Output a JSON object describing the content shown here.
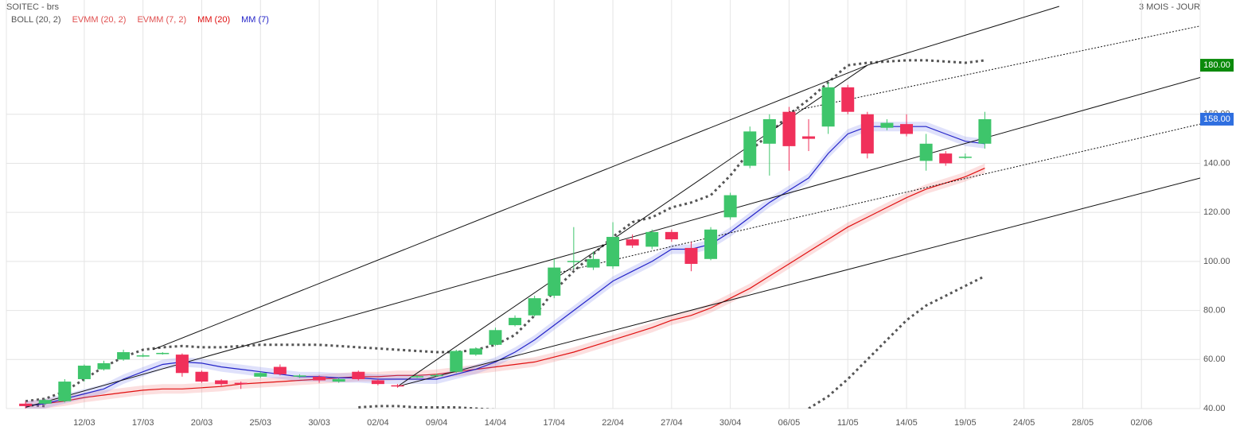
{
  "chart_data": {
    "type": "candlestick",
    "title": "SOITEC - brs",
    "period": "3 MOIS - JOUR",
    "up_color": "#3ec56b",
    "down_color": "#f0305a",
    "open": [
      42,
      42,
      43,
      52,
      56,
      60,
      61.3,
      62.3,
      62,
      55,
      51.5,
      50.5,
      53,
      57,
      53,
      53,
      51,
      55,
      51.5,
      49.5,
      52.8,
      53.3,
      55,
      62,
      66,
      74,
      78,
      86,
      99.8,
      97.5,
      98,
      109,
      106,
      112,
      105.5,
      101,
      118,
      139,
      148,
      161,
      151,
      155,
      171,
      160,
      154.5,
      156,
      141,
      144,
      142.3,
      148
    ],
    "high": [
      43,
      44,
      52,
      58,
      59.5,
      64,
      62.5,
      63,
      62.5,
      55.5,
      52,
      51,
      55,
      58,
      54,
      53.5,
      52.5,
      55.5,
      52,
      50,
      53.8,
      54.2,
      64,
      65,
      73,
      78,
      86,
      101,
      114,
      104,
      116,
      111,
      113,
      113,
      108,
      114,
      128,
      155,
      160,
      163,
      158,
      173,
      172,
      161,
      158,
      160,
      152,
      145,
      144,
      161
    ],
    "low": [
      40,
      41.5,
      42.5,
      51,
      55.5,
      59.5,
      61,
      62,
      53,
      50.5,
      49,
      48,
      52.5,
      53.5,
      52.5,
      50.5,
      50.5,
      51.5,
      49.5,
      48.5,
      52.5,
      53,
      54.5,
      61.5,
      65.5,
      73.5,
      77.5,
      85,
      97,
      96.5,
      97,
      105.5,
      105,
      108,
      96,
      100.5,
      117,
      138,
      135,
      137,
      145,
      152,
      160,
      142,
      153.5,
      151,
      137,
      139,
      141.8,
      146
    ],
    "close": [
      41,
      43.5,
      51,
      57.5,
      58.5,
      63,
      61.7,
      62.7,
      54.5,
      51,
      50,
      50,
      54.5,
      54,
      53.5,
      51.5,
      52,
      52,
      50,
      49,
      53.2,
      53.7,
      63.5,
      64.5,
      72,
      77,
      85,
      97.5,
      100.2,
      101,
      110,
      106.5,
      112,
      109,
      99,
      113,
      127,
      153,
      158,
      147,
      150,
      171,
      161,
      144,
      156.5,
      152,
      148,
      140,
      142.7,
      158
    ],
    "series": [
      {
        "name": "BOLL (20, 2)",
        "color": "#555555",
        "upper": [
          43,
          44,
          47,
          52,
          57,
          61,
          64,
          65,
          65.5,
          65,
          65,
          65.5,
          66,
          66,
          66,
          66,
          65.5,
          65,
          64.5,
          64,
          63.5,
          63,
          63,
          64,
          66,
          70,
          78,
          88,
          96,
          103,
          110,
          116,
          118,
          122,
          124,
          127,
          135,
          145,
          152,
          160,
          166,
          173,
          180,
          181,
          181.5,
          182,
          182,
          181.5,
          181,
          182
        ],
        "lower": [
          41.5,
          41,
          null,
          null,
          null,
          null,
          null,
          null,
          null,
          null,
          null,
          null,
          null,
          null,
          null,
          null,
          null,
          40.5,
          41,
          41,
          40.5,
          40.5,
          40.5,
          40,
          39.5,
          38.5,
          null,
          null,
          null,
          null,
          null,
          null,
          null,
          null,
          null,
          null,
          null,
          null,
          null,
          null,
          40,
          45,
          52,
          60,
          68,
          76,
          82,
          86,
          90,
          94
        ]
      },
      {
        "name": "EVMM (20, 2)",
        "color": "#e05050"
      },
      {
        "name": "EVMM (7, 2)",
        "color": "#e05050"
      },
      {
        "name": "MM (20)",
        "color": "#e01010",
        "band": "rgba(240,110,110,0.22)",
        "values": [
          41,
          42,
          43,
          44.5,
          45.5,
          46.5,
          47.5,
          48,
          48,
          48.5,
          49,
          50,
          50.5,
          51,
          51.5,
          52,
          52.5,
          53,
          53,
          53.5,
          53.5,
          54,
          55,
          56,
          57,
          58,
          59,
          61,
          63,
          65.5,
          68,
          70.5,
          73,
          76,
          78,
          81,
          85,
          89,
          94,
          99,
          104,
          109,
          114,
          118,
          122,
          126,
          129.5,
          132,
          134.5,
          138
        ]
      },
      {
        "name": "MM (7)",
        "color": "#2424c8",
        "band": "rgba(110,120,235,0.22)",
        "values": [
          41,
          42,
          44,
          46,
          48,
          52,
          55,
          58,
          59,
          58.5,
          57,
          56,
          55,
          54,
          53,
          53,
          52.5,
          52.5,
          52,
          52,
          52,
          52,
          54,
          56,
          59,
          63,
          68,
          74,
          80,
          86,
          92,
          96,
          100,
          105,
          105,
          107,
          112,
          118,
          124,
          129,
          134,
          144,
          152,
          155,
          155,
          155,
          155,
          152,
          149,
          148
        ]
      }
    ],
    "trendlines": [
      {
        "style": "solid",
        "x": [
          19,
          43
        ],
        "y": [
          49,
          180
        ]
      },
      {
        "style": "solid",
        "x": [
          43,
          52.8
        ],
        "y": [
          180,
          204
        ]
      },
      {
        "style": "solid",
        "x": [
          6.5,
          43
        ],
        "y": [
          64,
          180
        ]
      },
      {
        "style": "solid",
        "x": [
          0,
          60
        ],
        "y": [
          40.5,
          175
        ]
      },
      {
        "style": "solid",
        "x": [
          19,
          60
        ],
        "y": [
          49,
          134
        ]
      },
      {
        "style": "dotted",
        "x": [
          27,
          60
        ],
        "y": [
          95,
          156
        ]
      },
      {
        "style": "dotted",
        "x": [
          39,
          60
        ],
        "y": [
          161,
          196
        ]
      }
    ],
    "xlim": [
      -0.98,
      60
    ],
    "xticks": [
      {
        "value": 3,
        "label": "12/03"
      },
      {
        "value": 6,
        "label": "17/03"
      },
      {
        "value": 9,
        "label": "20/03"
      },
      {
        "value": 12,
        "label": "25/03"
      },
      {
        "value": 15,
        "label": "30/03"
      },
      {
        "value": 18,
        "label": "02/04"
      },
      {
        "value": 21,
        "label": "09/04"
      },
      {
        "value": 24,
        "label": "14/04"
      },
      {
        "value": 27,
        "label": "17/04"
      },
      {
        "value": 30,
        "label": "22/04"
      },
      {
        "value": 33,
        "label": "27/04"
      },
      {
        "value": 36,
        "label": "30/04"
      },
      {
        "value": 39,
        "label": "06/05"
      },
      {
        "value": 42,
        "label": "11/05"
      },
      {
        "value": 45,
        "label": "14/05"
      },
      {
        "value": 48,
        "label": "19/05"
      },
      {
        "value": 51,
        "label": "24/05"
      },
      {
        "value": 54,
        "label": "28/05"
      },
      {
        "value": 57,
        "label": "02/06"
      }
    ],
    "ylim": [
      40,
      206.6
    ],
    "yticks": [
      {
        "value": 40,
        "label": "40.00"
      },
      {
        "value": 60,
        "label": "60.00"
      },
      {
        "value": 80,
        "label": "80.00"
      },
      {
        "value": 100,
        "label": "100.00"
      },
      {
        "value": 120,
        "label": "120.00"
      },
      {
        "value": 140,
        "label": "140.00"
      },
      {
        "value": 160,
        "label": "160.00"
      }
    ],
    "price_markers": [
      {
        "value": 180,
        "label": "180.00",
        "color": "#0b8a0b"
      },
      {
        "value": 158,
        "label": "158.00",
        "color": "#2f6fe0"
      }
    ],
    "grid": true
  }
}
